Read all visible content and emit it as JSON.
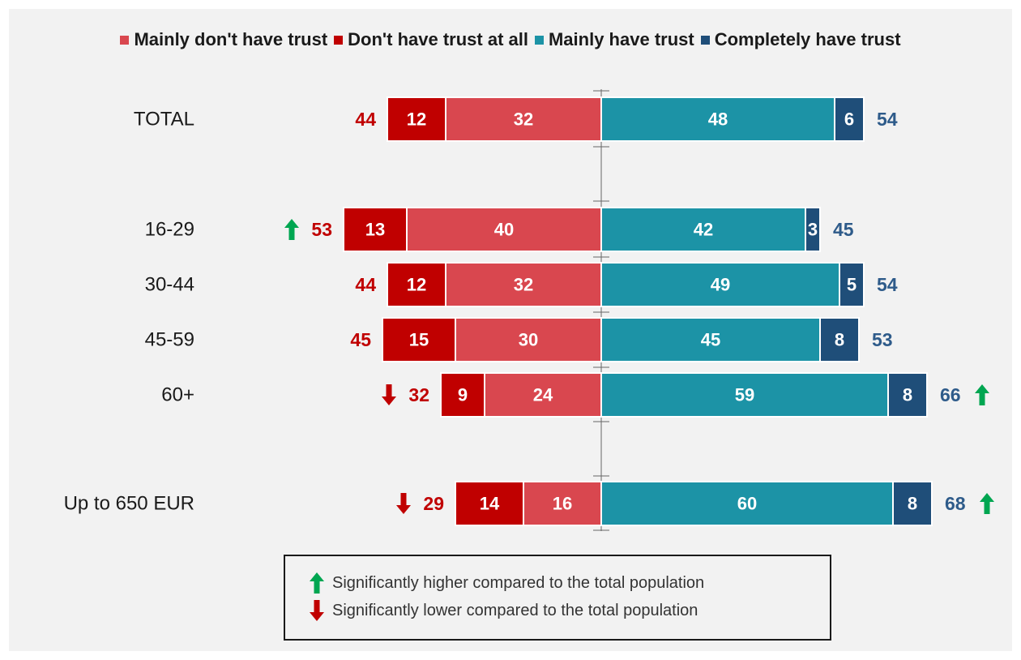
{
  "legend": {
    "mainly_dont_trust": "Mainly don't have trust",
    "dont_trust_at_all": "Don't have trust at all",
    "mainly_trust": "Mainly have trust",
    "completely_trust": "Completely have trust"
  },
  "colors": {
    "dont_trust_at_all": "#c00000",
    "mainly_dont_trust": "#d9474f",
    "mainly_trust": "#1c93a6",
    "completely_trust": "#1f4e79",
    "arrow_up": "#00a651",
    "arrow_down": "#c00000",
    "total_negative_label": "#c00000",
    "total_positive_label": "#2e5b8a"
  },
  "notes": {
    "higher": "Significantly higher compared to the total population",
    "lower": "Significantly lower compared to the total population"
  },
  "chart_data": {
    "type": "bar",
    "orientation": "horizontal-diverging",
    "categories": [
      "TOTAL",
      "16-29",
      "30-44",
      "45-59",
      "60+",
      "Up to 650 EUR"
    ],
    "series": [
      {
        "name": "Don't have trust at all",
        "side": "negative",
        "values": [
          12,
          13,
          12,
          15,
          9,
          14
        ]
      },
      {
        "name": "Mainly don't have trust",
        "side": "negative",
        "values": [
          32,
          40,
          32,
          30,
          24,
          16
        ]
      },
      {
        "name": "Mainly have trust",
        "side": "positive",
        "values": [
          48,
          42,
          49,
          45,
          59,
          60
        ]
      },
      {
        "name": "Completely have trust",
        "side": "positive",
        "values": [
          6,
          3,
          5,
          8,
          8,
          8
        ]
      }
    ],
    "negative_totals": [
      44,
      53,
      44,
      45,
      32,
      29
    ],
    "positive_totals": [
      54,
      45,
      54,
      53,
      66,
      68
    ],
    "negative_significance": [
      "",
      "up",
      "",
      "",
      "down",
      "down"
    ],
    "positive_significance": [
      "",
      "",
      "",
      "",
      "up",
      "up"
    ],
    "legend_position": "top"
  }
}
